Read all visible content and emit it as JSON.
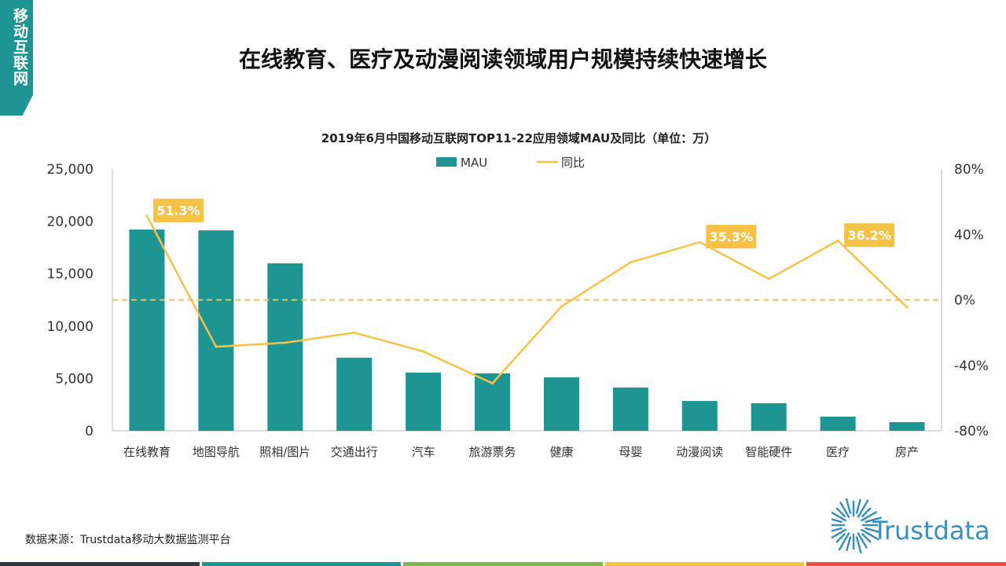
{
  "section_tag": "移动互联网",
  "page_title": "在线教育、医疗及动漫阅读领域用户规模持续快速增长",
  "source": "数据来源：Trustdata移动大数据监测平台",
  "logo_text": "Trustdata",
  "footer_colors": [
    "#2b3a42",
    "#1e9593",
    "#7cb54a",
    "#f5c245",
    "#e8503f"
  ],
  "chart_data": {
    "type": "bar+line",
    "title": "2019年6月中国移动互联网TOP11-22应用领域MAU及同比（单位：万）",
    "categories": [
      "在线教育",
      "地图导航",
      "照相/图片",
      "交通出行",
      "汽车",
      "旅游票务",
      "健康",
      "母婴",
      "动漫阅读",
      "智能硬件",
      "医疗",
      "房产"
    ],
    "series": [
      {
        "name": "MAU",
        "type": "bar",
        "axis": "left",
        "color": "#1e9593",
        "values": [
          19220,
          19140,
          15990,
          6980,
          5560,
          5480,
          5100,
          4130,
          2850,
          2630,
          1350,
          830
        ]
      },
      {
        "name": "同比",
        "type": "line",
        "axis": "right",
        "unit": "%",
        "color": "#f5c245",
        "values": [
          51.3,
          -28.6,
          -26.2,
          -20,
          -31.5,
          -51,
          -4,
          23,
          35.3,
          12.8,
          36.2,
          -4.5
        ]
      }
    ],
    "annotations": [
      {
        "category": "在线教育",
        "label": "51.3%"
      },
      {
        "category": "动漫阅读",
        "label": "35.3%"
      },
      {
        "category": "医疗",
        "label": "36.2%"
      }
    ],
    "left_axis": {
      "ylim": [
        0,
        25000
      ],
      "ticks": [
        "0",
        "5,000",
        "10,000",
        "15,000",
        "20,000",
        "25,000"
      ]
    },
    "right_axis": {
      "ylim": [
        -80,
        80
      ],
      "ticks": [
        "-80%",
        "-40%",
        "0%",
        "40%",
        "80%"
      ]
    },
    "reference_line": {
      "value": 0,
      "axis": "right",
      "style": "dashed"
    },
    "legend": {
      "placement": "top",
      "entries": [
        "MAU",
        "同比"
      ]
    },
    "grid": false
  }
}
